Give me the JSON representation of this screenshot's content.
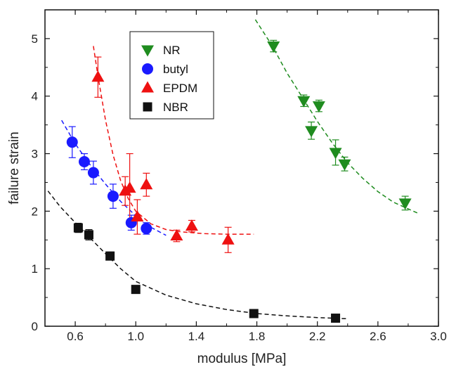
{
  "chart_data": {
    "type": "scatter",
    "title": "",
    "xlabel": "modulus  [MPa]",
    "ylabel": "failure strain",
    "xlim": [
      0.4,
      3.0
    ],
    "ylim": [
      0,
      5.5
    ],
    "xticks": [
      0.6,
      1.0,
      1.4,
      1.8,
      2.2,
      2.6,
      3.0
    ],
    "xtick_labels": [
      "0.6",
      "1.0",
      "1.4",
      "1.8",
      "2.2",
      "2.6",
      "3.0"
    ],
    "yticks": [
      0,
      1,
      2,
      3,
      4,
      5
    ],
    "ytick_labels": [
      "0",
      "1",
      "2",
      "3",
      "4",
      "5"
    ],
    "grid": false,
    "legend_position": "top-center",
    "series": [
      {
        "name": "NR",
        "marker": "triangle-down",
        "color": "#1f8c1f",
        "points": [
          {
            "x": 1.91,
            "y": 4.87,
            "err": 0.1
          },
          {
            "x": 2.11,
            "y": 3.92,
            "err": 0.1
          },
          {
            "x": 2.21,
            "y": 3.83,
            "err": 0.1
          },
          {
            "x": 2.16,
            "y": 3.4,
            "err": 0.15
          },
          {
            "x": 2.32,
            "y": 3.02,
            "err": 0.22
          },
          {
            "x": 2.38,
            "y": 2.82,
            "err": 0.12
          },
          {
            "x": 2.78,
            "y": 2.14,
            "err": 0.12
          }
        ],
        "fit": [
          [
            1.79,
            5.33
          ],
          [
            1.9,
            4.88
          ],
          [
            2.0,
            4.4
          ],
          [
            2.1,
            3.98
          ],
          [
            2.2,
            3.56
          ],
          [
            2.3,
            3.18
          ],
          [
            2.4,
            2.84
          ],
          [
            2.5,
            2.57
          ],
          [
            2.6,
            2.34
          ],
          [
            2.7,
            2.16
          ],
          [
            2.8,
            2.04
          ],
          [
            2.86,
            1.97
          ]
        ]
      },
      {
        "name": "butyl",
        "marker": "circle",
        "color": "#1a1aff",
        "points": [
          {
            "x": 0.58,
            "y": 3.2,
            "err": 0.27
          },
          {
            "x": 0.66,
            "y": 2.86,
            "err": 0.14
          },
          {
            "x": 0.72,
            "y": 2.67,
            "err": 0.2
          },
          {
            "x": 0.85,
            "y": 2.26,
            "err": 0.21
          },
          {
            "x": 0.97,
            "y": 1.8,
            "err": 0.13
          },
          {
            "x": 1.07,
            "y": 1.7,
            "err": 0.1
          }
        ],
        "fit": [
          [
            0.51,
            3.58
          ],
          [
            0.6,
            3.17
          ],
          [
            0.7,
            2.8
          ],
          [
            0.8,
            2.47
          ],
          [
            0.9,
            2.17
          ],
          [
            1.0,
            1.92
          ],
          [
            1.1,
            1.72
          ],
          [
            1.2,
            1.58
          ]
        ]
      },
      {
        "name": "EPDM",
        "marker": "triangle-up",
        "color": "#ee1111",
        "points": [
          {
            "x": 0.75,
            "y": 4.33,
            "err": 0.35
          },
          {
            "x": 0.93,
            "y": 2.35,
            "err": 0.25
          },
          {
            "x": 0.96,
            "y": 2.4,
            "err": 0.6
          },
          {
            "x": 1.01,
            "y": 1.9,
            "err": 0.3
          },
          {
            "x": 1.07,
            "y": 2.46,
            "err": 0.2
          },
          {
            "x": 1.27,
            "y": 1.57,
            "err": 0.1
          },
          {
            "x": 1.37,
            "y": 1.74,
            "err": 0.1
          },
          {
            "x": 1.61,
            "y": 1.5,
            "err": 0.22
          }
        ],
        "fit": [
          [
            0.72,
            4.87
          ],
          [
            0.75,
            4.35
          ],
          [
            0.8,
            3.58
          ],
          [
            0.85,
            2.98
          ],
          [
            0.9,
            2.53
          ],
          [
            0.95,
            2.22
          ],
          [
            1.0,
            2.0
          ],
          [
            1.1,
            1.78
          ],
          [
            1.2,
            1.68
          ],
          [
            1.3,
            1.64
          ],
          [
            1.45,
            1.61
          ],
          [
            1.6,
            1.6
          ],
          [
            1.78,
            1.6
          ]
        ]
      },
      {
        "name": "NBR",
        "marker": "square",
        "color": "#111111",
        "points": [
          {
            "x": 0.62,
            "y": 1.71,
            "err": 0.08
          },
          {
            "x": 0.69,
            "y": 1.59,
            "err": 0.09
          },
          {
            "x": 0.83,
            "y": 1.22,
            "err": 0.07
          },
          {
            "x": 1.0,
            "y": 0.64,
            "err": 0.03
          },
          {
            "x": 1.78,
            "y": 0.22,
            "err": 0.03
          },
          {
            "x": 2.32,
            "y": 0.14,
            "err": 0.03
          }
        ],
        "fit": [
          [
            0.42,
            2.35
          ],
          [
            0.5,
            2.08
          ],
          [
            0.6,
            1.8
          ],
          [
            0.7,
            1.53
          ],
          [
            0.8,
            1.26
          ],
          [
            0.9,
            1.0
          ],
          [
            1.0,
            0.78
          ],
          [
            1.2,
            0.54
          ],
          [
            1.4,
            0.39
          ],
          [
            1.6,
            0.29
          ],
          [
            1.8,
            0.22
          ],
          [
            2.0,
            0.18
          ],
          [
            2.2,
            0.15
          ],
          [
            2.4,
            0.13
          ]
        ]
      }
    ]
  }
}
